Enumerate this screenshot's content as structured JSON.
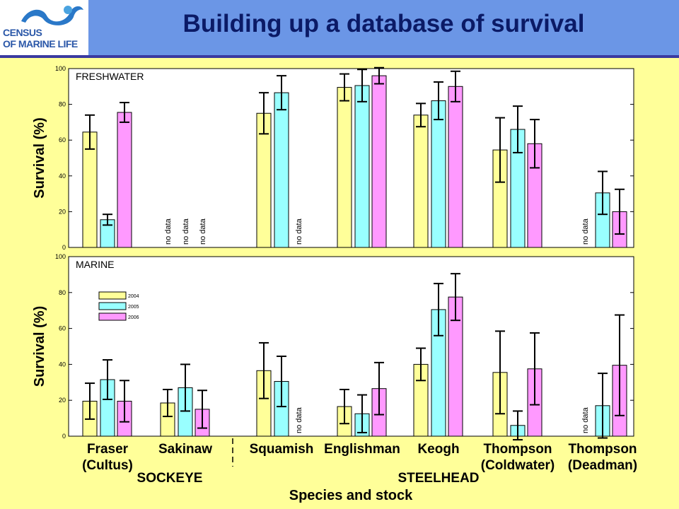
{
  "header": {
    "title": "Building up a database of survival",
    "logo_line1": "CENSUS",
    "logo_line2": "OF MARINE LIFE"
  },
  "colors": {
    "header_bg": "#6b96e6",
    "page_bg": "#ffff99",
    "title": "#0b1a66",
    "y2004": "#ffff99",
    "y2005": "#99ffff",
    "y2006": "#ff99ff"
  },
  "chart_data": [
    {
      "type": "bar",
      "panel_label": "FRESHWATER",
      "ylabel": "Survival (%)",
      "ylim": [
        0,
        100
      ],
      "yticks": [
        0,
        20,
        40,
        60,
        80,
        100
      ],
      "categories": [
        "Fraser (Cultus)",
        "Sakinaw",
        "Squamish",
        "Englishman",
        "Keogh",
        "Thompson (Coldwater)",
        "Thompson (Deadman)"
      ],
      "series": [
        {
          "name": "2004",
          "values": [
            64.5,
            null,
            75,
            89.5,
            74,
            54.5,
            null
          ],
          "err": [
            9.5,
            null,
            11.5,
            7.5,
            6.5,
            18,
            null
          ]
        },
        {
          "name": "2005",
          "values": [
            15.5,
            null,
            86.5,
            90.5,
            82,
            66,
            30.5
          ],
          "err": [
            3,
            null,
            9.5,
            9,
            10.5,
            13,
            12
          ]
        },
        {
          "name": "2006",
          "values": [
            75.5,
            null,
            null,
            96,
            90,
            58,
            20
          ],
          "err": [
            5.5,
            null,
            null,
            4.5,
            8.5,
            13.5,
            12.5
          ]
        }
      ],
      "no_data_label": "no data"
    },
    {
      "type": "bar",
      "panel_label": "MARINE",
      "ylabel": "Survival (%)",
      "ylim": [
        0,
        100
      ],
      "yticks": [
        0,
        20,
        40,
        60,
        80,
        100
      ],
      "categories": [
        "Fraser (Cultus)",
        "Sakinaw",
        "Squamish",
        "Englishman",
        "Keogh",
        "Thompson (Coldwater)",
        "Thompson (Deadman)"
      ],
      "series": [
        {
          "name": "2004",
          "values": [
            19.5,
            18.5,
            36.5,
            16.5,
            40,
            35.5,
            null
          ],
          "err": [
            10,
            7.5,
            15.5,
            9.5,
            9,
            23,
            null
          ]
        },
        {
          "name": "2005",
          "values": [
            31.5,
            27,
            30.5,
            12.5,
            70.5,
            6,
            17
          ],
          "err": [
            11,
            13,
            14,
            10.5,
            14.5,
            8,
            18
          ]
        },
        {
          "name": "2006",
          "values": [
            19.5,
            15,
            null,
            26.5,
            77.5,
            37.5,
            39.5
          ],
          "err": [
            11.5,
            10.5,
            null,
            14.5,
            13,
            20,
            28
          ]
        }
      ],
      "legend": [
        "2004",
        "2005",
        "2006"
      ],
      "legend_placement": "upper-left",
      "no_data_label": "no data"
    }
  ],
  "axis": {
    "cat_line1": [
      "Fraser",
      "Sakinaw",
      "Squamish",
      "Englishman",
      "Keogh",
      "Thompson",
      "Thompson"
    ],
    "cat_line2": [
      "(Cultus)",
      "",
      "",
      "",
      "",
      "(Coldwater)",
      "(Deadman)"
    ],
    "group_sockeye": "SOCKEYE",
    "group_steelhead": "STEELHEAD",
    "xlabel": "Species and stock"
  }
}
